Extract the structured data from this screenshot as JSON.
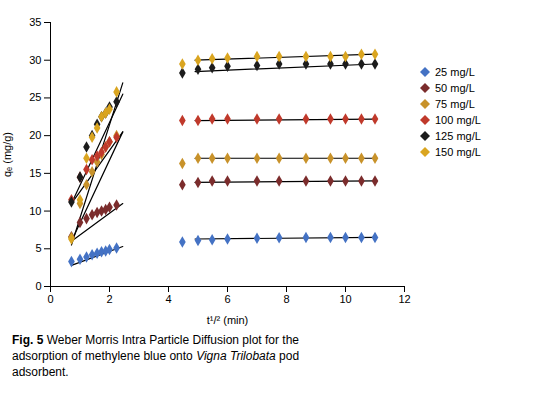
{
  "chart_data": {
    "type": "scatter",
    "xlabel": "t¹/² (min)",
    "ylabel": "qₑ (mg/g)",
    "xlim": [
      0,
      12
    ],
    "ylim": [
      0,
      35
    ],
    "xticks": [
      0,
      2,
      4,
      6,
      8,
      10,
      12
    ],
    "yticks": [
      0,
      5,
      10,
      15,
      20,
      25,
      30,
      35
    ],
    "grid": false,
    "legend": "right",
    "caption": [
      [
        {
          "text": "Fig. 5",
          "style": "bold"
        },
        {
          "text": "Weber Morris Intra Particle Diffusion plot for the",
          "style": "normal"
        }
      ],
      [
        {
          "text": "adsorption of methylene blue onto",
          "style": "normal"
        },
        {
          "text": "Vigna Trilobata",
          "style": "italic"
        },
        {
          "text": "pod",
          "style": "normal"
        }
      ],
      [
        {
          "text": "adsorbent.",
          "style": "normal"
        }
      ]
    ],
    "series": [
      {
        "name": "25 mg/L",
        "color": "#4472C4",
        "marker": "diamond",
        "x": [
          0.71,
          1.0,
          1.22,
          1.41,
          1.58,
          1.73,
          1.87,
          2.0,
          2.24,
          4.47,
          5.0,
          5.48,
          6.0,
          7.0,
          7.75,
          8.66,
          9.49,
          10.0,
          10.54,
          11.0
        ],
        "values": [
          3.3,
          3.6,
          3.9,
          4.2,
          4.4,
          4.6,
          4.7,
          4.9,
          5.1,
          5.9,
          6.1,
          6.2,
          6.3,
          6.4,
          6.45,
          6.5,
          6.5,
          6.5,
          6.5,
          6.5
        ],
        "fit_lines": [
          {
            "x": [
              0.71,
              2.45
            ],
            "values": [
              2.8,
              5.3
            ],
            "color": "#000000"
          },
          {
            "x": [
              4.9,
              11.0
            ],
            "values": [
              6.3,
              6.5
            ],
            "color": "#000000"
          }
        ]
      },
      {
        "name": "50 mg/L",
        "color": "#7B2C2C",
        "marker": "diamond",
        "x": [
          0.71,
          1.0,
          1.22,
          1.41,
          1.58,
          1.73,
          1.87,
          2.0,
          2.24,
          4.47,
          5.0,
          5.48,
          6.0,
          7.0,
          7.75,
          8.66,
          9.49,
          10.0,
          10.54,
          11.0
        ],
        "values": [
          6.6,
          8.5,
          9.0,
          9.5,
          9.8,
          10.0,
          10.2,
          10.5,
          10.8,
          13.5,
          13.8,
          14.0,
          14.0,
          14.0,
          14.0,
          14.0,
          14.0,
          14.0,
          14.0,
          14.0
        ],
        "fit_lines": [
          {
            "x": [
              0.71,
              2.45
            ],
            "values": [
              6.0,
              11.0
            ],
            "color": "#000000"
          },
          {
            "x": [
              4.9,
              11.0
            ],
            "values": [
              13.8,
              14.0
            ],
            "color": "#000000"
          }
        ]
      },
      {
        "name": "75 mg/L",
        "color": "#C8922A",
        "marker": "diamond",
        "x": [
          0.71,
          1.0,
          1.22,
          1.41,
          1.58,
          1.73,
          1.87,
          2.0,
          2.24,
          4.47,
          5.0,
          5.48,
          6.0,
          7.0,
          7.75,
          8.66,
          9.49,
          10.0,
          10.54,
          11.0
        ],
        "values": [
          6.5,
          11.0,
          13.5,
          15.2,
          16.5,
          17.5,
          18.5,
          19.2,
          20.0,
          16.3,
          17.0,
          17.0,
          17.0,
          17.0,
          17.0,
          17.0,
          17.0,
          17.0,
          17.0,
          17.0
        ],
        "fit_lines": [
          {
            "x": [
              0.71,
              2.45
            ],
            "values": [
              6.0,
              20.5
            ],
            "color": "#000000"
          },
          {
            "x": [
              4.9,
              11.0
            ],
            "values": [
              17.0,
              17.0
            ],
            "color": "#000000"
          }
        ]
      },
      {
        "name": "100 mg/L",
        "color": "#C0392B",
        "marker": "diamond",
        "x": [
          0.71,
          1.0,
          1.22,
          1.41,
          1.58,
          1.73,
          1.87,
          2.0,
          2.24,
          4.47,
          5.0,
          5.48,
          6.0,
          7.0,
          7.75,
          8.66,
          9.49,
          10.0,
          10.54,
          11.0
        ],
        "values": [
          11.5,
          14.5,
          15.5,
          16.8,
          17.3,
          17.8,
          18.5,
          19.2,
          19.8,
          22.0,
          22.0,
          22.2,
          22.2,
          22.2,
          22.2,
          22.2,
          22.2,
          22.2,
          22.2,
          22.2
        ],
        "fit_lines": [
          {
            "x": [
              0.71,
              2.45
            ],
            "values": [
              11.0,
              20.5
            ],
            "color": "#000000"
          },
          {
            "x": [
              4.9,
              11.0
            ],
            "values": [
              22.0,
              22.2
            ],
            "color": "#000000"
          }
        ]
      },
      {
        "name": "125 mg/L",
        "color": "#1C1C1C",
        "marker": "diamond",
        "x": [
          0.71,
          1.0,
          1.22,
          1.41,
          1.58,
          1.73,
          1.87,
          2.0,
          2.24,
          4.47,
          5.0,
          5.48,
          6.0,
          7.0,
          7.75,
          8.66,
          9.49,
          10.0,
          10.54,
          11.0
        ],
        "values": [
          11.2,
          14.5,
          18.5,
          20.0,
          21.5,
          22.5,
          23.0,
          23.8,
          24.5,
          28.3,
          28.8,
          29.0,
          29.2,
          29.3,
          29.5,
          29.5,
          29.5,
          29.5,
          29.5,
          29.5
        ],
        "fit_lines": [
          {
            "x": [
              0.71,
              2.45
            ],
            "values": [
              11.0,
              25.5
            ],
            "color": "#000000"
          },
          {
            "x": [
              4.9,
              11.0
            ],
            "values": [
              28.5,
              29.5
            ],
            "color": "#000000"
          }
        ]
      },
      {
        "name": "150 mg/L",
        "color": "#DAA520",
        "marker": "diamond",
        "x": [
          0.71,
          1.0,
          1.22,
          1.41,
          1.58,
          1.73,
          1.87,
          2.0,
          2.24,
          4.47,
          5.0,
          5.48,
          6.0,
          7.0,
          7.75,
          8.66,
          9.49,
          10.0,
          10.54,
          11.0
        ],
        "values": [
          6.3,
          11.5,
          17.0,
          19.8,
          21.0,
          22.5,
          23.0,
          23.5,
          25.8,
          29.5,
          30.0,
          30.2,
          30.3,
          30.5,
          30.5,
          30.5,
          30.5,
          30.5,
          30.8,
          30.8
        ],
        "fit_lines": [
          {
            "x": [
              0.71,
              2.45
            ],
            "values": [
              5.5,
              27.0
            ],
            "color": "#000000"
          },
          {
            "x": [
              4.9,
              11.0
            ],
            "values": [
              30.0,
              30.8
            ],
            "color": "#000000"
          }
        ]
      }
    ]
  }
}
